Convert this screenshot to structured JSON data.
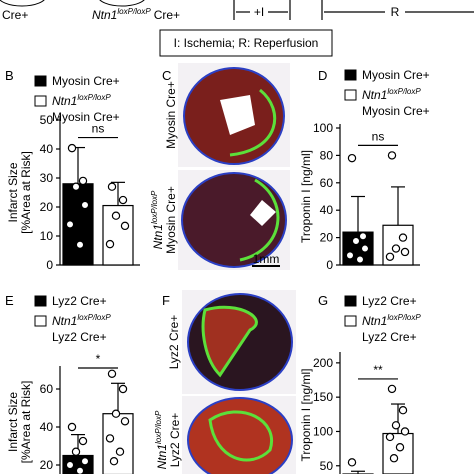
{
  "schematic": {
    "left_mouse": "Cre+",
    "right_mouse": {
      "gene": "Ntn1",
      "allele": "loxP/loxP",
      "driver": "Cre+"
    },
    "ischemia": "+I",
    "reperfusion": "R",
    "key": "I: Ischemia; R: Reperfusion"
  },
  "image_panels": [
    {
      "panel": "C",
      "top_label": "Myosin Cre+",
      "bottom_label": {
        "gene": "Ntn1",
        "allele": "loxP/loxP",
        "driver": "Myosin Cre+"
      },
      "scale_bar": "1mm"
    },
    {
      "panel": "F",
      "top_label": "Lyz2 Cre+",
      "bottom_label": {
        "gene": "Ntn1",
        "allele": "loxP/loxP",
        "driver": "Lyz2 Cre+"
      }
    }
  ],
  "chart_data": [
    {
      "type": "bar",
      "panel": "B",
      "ylabel": [
        "Infarct Size",
        "[%Area at Risk]"
      ],
      "ylim": [
        0,
        50
      ],
      "yticks": [
        0,
        10,
        20,
        30,
        40,
        50
      ],
      "significance": "ns",
      "series": [
        {
          "name": "Myosin Cre+",
          "color": "#000000",
          "values": [
            28
          ],
          "errors": [
            12.5
          ],
          "points": [
            40.3,
            29,
            27,
            20.7,
            14,
            7
          ]
        },
        {
          "name": {
            "gene": "Ntn1",
            "allele": "loxP/loxP",
            "driver": "Myosin Cre+"
          },
          "color": "#ffffff",
          "values": [
            20.5
          ],
          "errors": [
            8
          ],
          "points": [
            27,
            22.4,
            17,
            13.5,
            7.2
          ]
        }
      ]
    },
    {
      "type": "bar",
      "panel": "D",
      "ylabel": [
        "Troponin I [ng/ml]"
      ],
      "ylim": [
        0,
        100
      ],
      "yticks": [
        0,
        20,
        40,
        60,
        80,
        100
      ],
      "significance": "ns",
      "series": [
        {
          "name": "Myosin Cre+",
          "color": "#000000",
          "values": [
            24
          ],
          "errors": [
            26
          ],
          "points": [
            78,
            21,
            17.5,
            12,
            7,
            4
          ]
        },
        {
          "name": {
            "gene": "Ntn1",
            "allele": "loxP/loxP",
            "driver": "Myosin Cre+"
          },
          "color": "#ffffff",
          "values": [
            29
          ],
          "errors": [
            28
          ],
          "points": [
            80,
            20,
            12,
            9.5,
            6
          ]
        }
      ]
    },
    {
      "type": "bar",
      "panel": "E",
      "ylabel": [
        "Infarct Size",
        "[%Area at Risk]"
      ],
      "ylim": [
        15,
        70
      ],
      "yticks": [
        20,
        40,
        60
      ],
      "significance": "*",
      "series": [
        {
          "name": "Lyz2 Cre+",
          "color": "#000000",
          "values": [
            25
          ],
          "errors": [
            11
          ],
          "points": [
            40,
            32.6,
            27,
            22,
            20,
            17
          ]
        },
        {
          "name": {
            "gene": "Ntn1",
            "allele": "loxP/loxP",
            "driver": "Lyz2 Cre+"
          },
          "color": "#ffffff",
          "values": [
            47
          ],
          "errors": [
            16
          ],
          "points": [
            68,
            60,
            47,
            43,
            34,
            27,
            22
          ]
        }
      ]
    },
    {
      "type": "bar",
      "panel": "G",
      "ylabel": [
        "Troponin I [ng/ml]"
      ],
      "ylim": [
        38,
        210
      ],
      "yticks": [
        50,
        100,
        150,
        200
      ],
      "significance": "**",
      "series": [
        {
          "name": "Lyz2 Cre+",
          "color": "#000000",
          "values": [
            30
          ],
          "errors": [
            12
          ],
          "points": [
            55
          ]
        },
        {
          "name": {
            "gene": "Ntn1",
            "allele": "loxP/loxP",
            "driver": "Lyz2 Cre+"
          },
          "color": "#ffffff",
          "values": [
            97
          ],
          "errors": [
            43
          ],
          "points": [
            162,
            131,
            109,
            100,
            92,
            77,
            61
          ]
        }
      ]
    }
  ]
}
